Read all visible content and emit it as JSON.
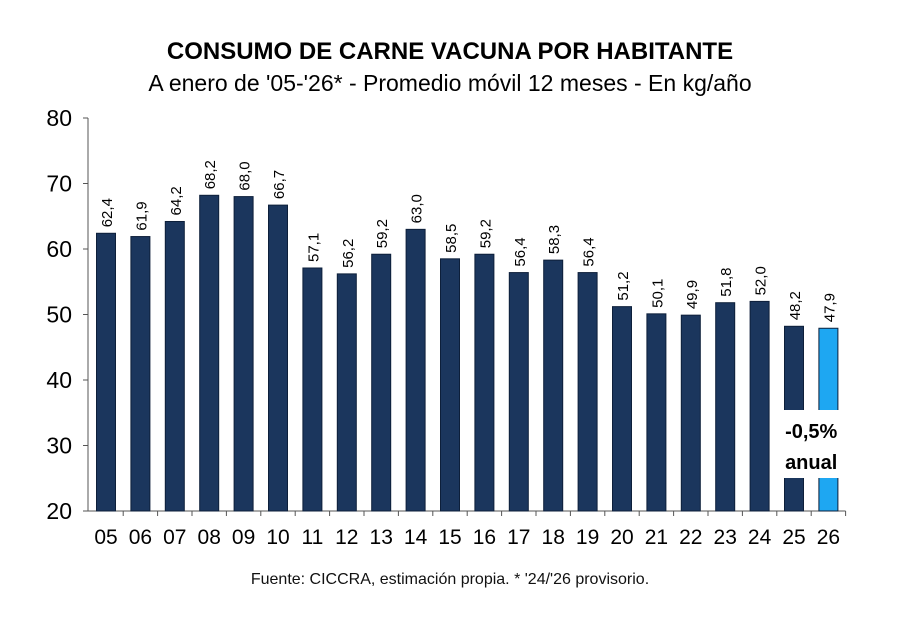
{
  "chart_data": {
    "type": "bar",
    "title": "CONSUMO DE CARNE VACUNA POR HABITANTE",
    "subtitle": "A enero de '05-'26* - Promedio móvil 12 meses -  En kg/año",
    "categories": [
      "05",
      "06",
      "07",
      "08",
      "09",
      "10",
      "11",
      "12",
      "13",
      "14",
      "15",
      "16",
      "17",
      "18",
      "19",
      "20",
      "21",
      "22",
      "23",
      "24",
      "25",
      "26"
    ],
    "values": [
      62.4,
      61.9,
      64.2,
      68.2,
      68.0,
      66.7,
      57.1,
      56.2,
      59.2,
      63.0,
      58.5,
      59.2,
      56.4,
      58.3,
      56.4,
      51.2,
      50.1,
      49.9,
      51.8,
      52.0,
      48.2,
      47.9
    ],
    "data_labels": [
      "62,4",
      "61,9",
      "64,2",
      "68,2",
      "68,0",
      "66,7",
      "57,1",
      "56,2",
      "59,2",
      "63,0",
      "58,5",
      "59,2",
      "56,4",
      "58,3",
      "56,4",
      "51,2",
      "50,1",
      "49,9",
      "51,8",
      "52,0",
      "48,2",
      "47,9"
    ],
    "ylim": [
      20,
      80
    ],
    "yticks": [
      20,
      30,
      40,
      50,
      60,
      70,
      80
    ],
    "xlabel": "",
    "ylabel": "",
    "grid": false,
    "colors": {
      "bar": "#1b365d",
      "highlight": "#1ea7f2"
    },
    "highlight_category": "26",
    "annotation": {
      "line1": "-0,5%",
      "line2": "anual"
    },
    "source": "Fuente: CICCRA, estimación propia. * '24/'26 provisorio."
  }
}
